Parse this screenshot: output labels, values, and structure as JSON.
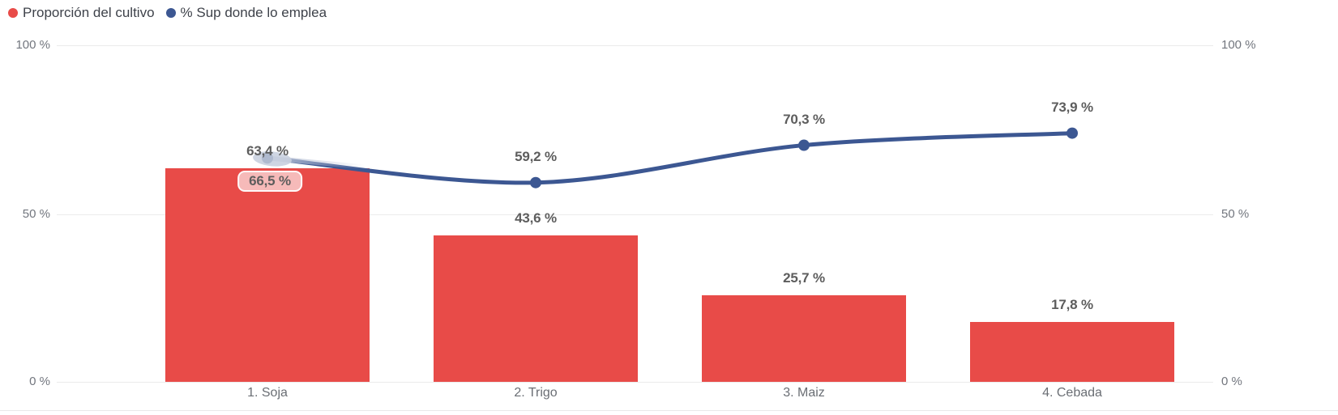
{
  "legend": {
    "items": [
      {
        "label": "Proporción del cultivo",
        "color": "#E84B48"
      },
      {
        "label": "% Sup donde lo emplea",
        "color": "#3C5792"
      }
    ]
  },
  "axes": {
    "left": [
      "100 %",
      "50 %",
      "0 %"
    ],
    "right": [
      "100 %",
      "50 %",
      "0 %"
    ]
  },
  "chart_data": {
    "type": "combo-bar-line",
    "title": "",
    "categories": [
      "1. Soja",
      "2. Trigo",
      "3. Maiz",
      "4. Cebada"
    ],
    "series": [
      {
        "name": "Proporción del cultivo",
        "type": "bar",
        "color": "#E84B48",
        "values": [
          63.4,
          43.6,
          25.7,
          17.8
        ],
        "labels": [
          "63,4 %",
          "43,6 %",
          "25,7 %",
          "17,8 %"
        ]
      },
      {
        "name": "% Sup donde lo emplea",
        "type": "line",
        "color": "#3C5792",
        "values": [
          66.5,
          59.2,
          70.3,
          73.9
        ],
        "labels": [
          "66,5 %",
          "59,2 %",
          "70,3 %",
          "73,9 %"
        ]
      }
    ],
    "ylim": [
      0,
      100
    ],
    "y_ticks": [
      "0 %",
      "50 %",
      "100 %"
    ],
    "grid": true,
    "dual_axis": true,
    "legend_position": "top-left",
    "highlighted_point": {
      "category": "1. Soja",
      "series": "% Sup donde lo emplea",
      "label": "66,5 %",
      "label_background": true,
      "halo_color": "#C9D0DF",
      "point_color": "#AFBACF"
    }
  }
}
